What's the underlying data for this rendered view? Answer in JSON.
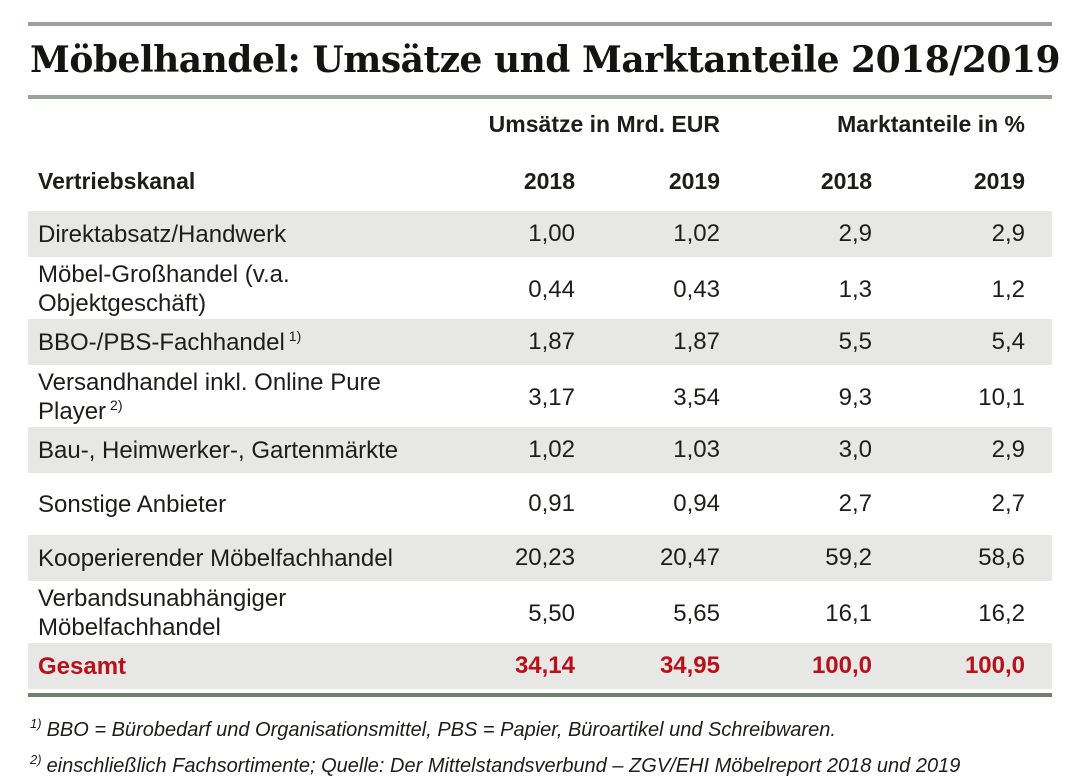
{
  "title": "Möbelhandel: Umsätze und Marktanteile 2018/2019",
  "table": {
    "group_headers": {
      "umsaetze": "Umsätze in Mrd. EUR",
      "marktanteile": "Marktanteile in %"
    },
    "label_header": "Vertriebskanal",
    "year_headers": [
      "2018",
      "2019",
      "2018",
      "2019"
    ],
    "rows": [
      {
        "label": "Direktabsatz/Handwerk",
        "sup": "",
        "values": [
          "1,00",
          "1,02",
          "2,9",
          "2,9"
        ]
      },
      {
        "label": "Möbel-Großhandel (v.a. Objektgeschäft)",
        "sup": "",
        "values": [
          "0,44",
          "0,43",
          "1,3",
          "1,2"
        ]
      },
      {
        "label": "BBO-/PBS-Fachhandel",
        "sup": "1)",
        "values": [
          "1,87",
          "1,87",
          "5,5",
          "5,4"
        ]
      },
      {
        "label": "Versandhandel inkl. Online Pure Player",
        "sup": "2)",
        "values": [
          "3,17",
          "3,54",
          "9,3",
          "10,1"
        ]
      },
      {
        "label": "Bau-, Heimwerker-, Gartenmärkte",
        "sup": "",
        "values": [
          "1,02",
          "1,03",
          "3,0",
          "2,9"
        ]
      },
      {
        "label": "Sonstige Anbieter",
        "sup": "",
        "values": [
          "0,91",
          "0,94",
          "2,7",
          "2,7"
        ]
      },
      {
        "label": "Kooperierender Möbelfachhandel",
        "sup": "",
        "values": [
          "20,23",
          "20,47",
          "59,2",
          "58,6"
        ]
      },
      {
        "label": "Verbandsunabhängiger Möbelfachhandel",
        "sup": "",
        "values": [
          "5,50",
          "5,65",
          "16,1",
          "16,2"
        ]
      },
      {
        "label": "Gesamt",
        "sup": "",
        "values": [
          "34,14",
          "34,95",
          "100,0",
          "100,0"
        ]
      }
    ]
  },
  "footnotes": [
    {
      "sup": "1)",
      "text": "BBO = Bürobedarf und Organisationsmittel, PBS = Papier, Büroartikel und Schreibwaren."
    },
    {
      "sup": "2)",
      "text": "einschließlich Fachsortimente; Quelle: Der Mittelstandsverbund – ZGV/EHI Möbelreport 2018 und 2019"
    }
  ],
  "colors": {
    "rule_light": "#9aa399",
    "rule_dark": "#72806e",
    "row_gray": "#e7e7e6",
    "total_red": "#b5121c",
    "text": "#1d1d1b"
  },
  "chart_data": {
    "type": "table",
    "title": "Möbelhandel: Umsätze und Marktanteile 2018/2019",
    "column_groups": [
      "Umsätze in Mrd. EUR",
      "Marktanteile in %"
    ],
    "columns": [
      "Vertriebskanal",
      "Umsätze 2018 (Mrd. EUR)",
      "Umsätze 2019 (Mrd. EUR)",
      "Marktanteil 2018 (%)",
      "Marktanteil 2019 (%)"
    ],
    "rows": [
      [
        "Direktabsatz/Handwerk",
        1.0,
        1.02,
        2.9,
        2.9
      ],
      [
        "Möbel-Großhandel (v.a. Objektgeschäft)",
        0.44,
        0.43,
        1.3,
        1.2
      ],
      [
        "BBO-/PBS-Fachhandel",
        1.87,
        1.87,
        5.5,
        5.4
      ],
      [
        "Versandhandel inkl. Online Pure Player",
        3.17,
        3.54,
        9.3,
        10.1
      ],
      [
        "Bau-, Heimwerker-, Gartenmärkte",
        1.02,
        1.03,
        3.0,
        2.9
      ],
      [
        "Sonstige Anbieter",
        0.91,
        0.94,
        2.7,
        2.7
      ],
      [
        "Kooperierender Möbelfachhandel",
        20.23,
        20.47,
        59.2,
        58.6
      ],
      [
        "Verbandsunabhängiger Möbelfachhandel",
        5.5,
        5.65,
        16.1,
        16.2
      ],
      [
        "Gesamt",
        34.14,
        34.95,
        100.0,
        100.0
      ]
    ]
  }
}
